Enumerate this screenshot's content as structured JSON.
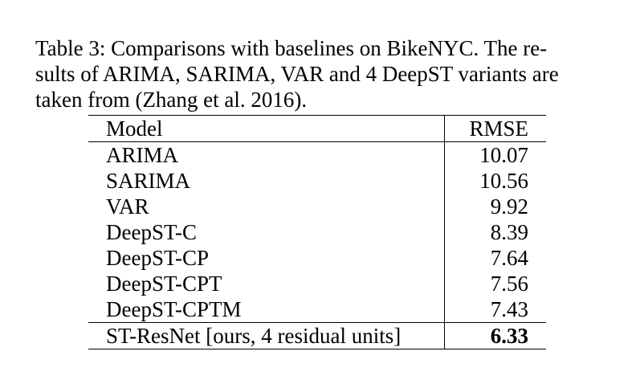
{
  "caption": {
    "lines": [
      "Table 3: Comparisons with baselines on BikeNYC. The re-",
      "sults of ARIMA, SARIMA, VAR and 4 DeepST variants are",
      "taken from (Zhang et al. 2016)."
    ]
  },
  "table": {
    "headers": [
      "Model",
      "RMSE"
    ],
    "rows": [
      {
        "model": "ARIMA",
        "rmse": "10.07"
      },
      {
        "model": "SARIMA",
        "rmse": "10.56"
      },
      {
        "model": "VAR",
        "rmse": "9.92"
      },
      {
        "model": "DeepST-C",
        "rmse": "8.39"
      },
      {
        "model": "DeepST-CP",
        "rmse": "7.64"
      },
      {
        "model": "DeepST-CPT",
        "rmse": "7.56"
      },
      {
        "model": "DeepST-CPTM",
        "rmse": "7.43"
      }
    ],
    "final_row": {
      "model": "ST-ResNet [ours, 4 residual units]",
      "rmse": "6.33"
    }
  }
}
